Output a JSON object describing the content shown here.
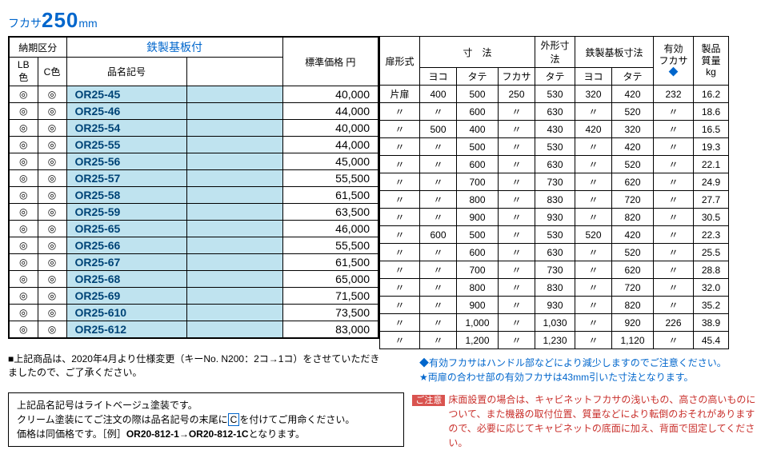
{
  "title_prefix": "フカサ",
  "title_value": "250",
  "title_unit": "mm",
  "left_headers": {
    "noukiku": "納期区分",
    "tetsu": "鉄製基板付",
    "lb": "LB色",
    "c": "C色",
    "hinmei": "品名記号",
    "price": "標準価格 円"
  },
  "right_headers": {
    "tobira": "扉形式",
    "sunpou": "寸　法",
    "gaikei": "外形寸法",
    "tetsuban": "鉄製基板寸法",
    "yuko": "有効\nフカサ",
    "shitsu": "製品\n質量",
    "yoko": "ヨコ",
    "tate": "タテ",
    "fukasa": "フカサ",
    "kg": "kg",
    "diamond": "◆"
  },
  "circle": "◎",
  "ditto": "〃",
  "rows": [
    {
      "pn": "OR25-45",
      "price": "40,000",
      "tobira": "片扉",
      "yoko": "400",
      "tate": "500",
      "fukasa": "250",
      "gtate": "530",
      "tyoko": "320",
      "ttate": "420",
      "yuko": "232",
      "kg": "16.2"
    },
    {
      "pn": "OR25-46",
      "price": "44,000",
      "tobira": "〃",
      "yoko": "〃",
      "tate": "600",
      "fukasa": "〃",
      "gtate": "630",
      "tyoko": "〃",
      "ttate": "520",
      "yuko": "〃",
      "kg": "18.6"
    },
    {
      "pn": "OR25-54",
      "price": "40,000",
      "tobira": "〃",
      "yoko": "500",
      "tate": "400",
      "fukasa": "〃",
      "gtate": "430",
      "tyoko": "420",
      "ttate": "320",
      "yuko": "〃",
      "kg": "16.5"
    },
    {
      "pn": "OR25-55",
      "price": "44,000",
      "tobira": "〃",
      "yoko": "〃",
      "tate": "500",
      "fukasa": "〃",
      "gtate": "530",
      "tyoko": "〃",
      "ttate": "420",
      "yuko": "〃",
      "kg": "19.3"
    },
    {
      "pn": "OR25-56",
      "price": "45,000",
      "tobira": "〃",
      "yoko": "〃",
      "tate": "600",
      "fukasa": "〃",
      "gtate": "630",
      "tyoko": "〃",
      "ttate": "520",
      "yuko": "〃",
      "kg": "22.1"
    },
    {
      "pn": "OR25-57",
      "price": "55,500",
      "tobira": "〃",
      "yoko": "〃",
      "tate": "700",
      "fukasa": "〃",
      "gtate": "730",
      "tyoko": "〃",
      "ttate": "620",
      "yuko": "〃",
      "kg": "24.9"
    },
    {
      "pn": "OR25-58",
      "price": "61,500",
      "tobira": "〃",
      "yoko": "〃",
      "tate": "800",
      "fukasa": "〃",
      "gtate": "830",
      "tyoko": "〃",
      "ttate": "720",
      "yuko": "〃",
      "kg": "27.7"
    },
    {
      "pn": "OR25-59",
      "price": "63,500",
      "tobira": "〃",
      "yoko": "〃",
      "tate": "900",
      "fukasa": "〃",
      "gtate": "930",
      "tyoko": "〃",
      "ttate": "820",
      "yuko": "〃",
      "kg": "30.5"
    },
    {
      "pn": "OR25-65",
      "price": "46,000",
      "tobira": "〃",
      "yoko": "600",
      "tate": "500",
      "fukasa": "〃",
      "gtate": "530",
      "tyoko": "520",
      "ttate": "420",
      "yuko": "〃",
      "kg": "22.3"
    },
    {
      "pn": "OR25-66",
      "price": "55,500",
      "tobira": "〃",
      "yoko": "〃",
      "tate": "600",
      "fukasa": "〃",
      "gtate": "630",
      "tyoko": "〃",
      "ttate": "520",
      "yuko": "〃",
      "kg": "25.5"
    },
    {
      "pn": "OR25-67",
      "price": "61,500",
      "tobira": "〃",
      "yoko": "〃",
      "tate": "700",
      "fukasa": "〃",
      "gtate": "730",
      "tyoko": "〃",
      "ttate": "620",
      "yuko": "〃",
      "kg": "28.8"
    },
    {
      "pn": "OR25-68",
      "price": "65,000",
      "tobira": "〃",
      "yoko": "〃",
      "tate": "800",
      "fukasa": "〃",
      "gtate": "830",
      "tyoko": "〃",
      "ttate": "720",
      "yuko": "〃",
      "kg": "32.0"
    },
    {
      "pn": "OR25-69",
      "price": "71,500",
      "tobira": "〃",
      "yoko": "〃",
      "tate": "900",
      "fukasa": "〃",
      "gtate": "930",
      "tyoko": "〃",
      "ttate": "820",
      "yuko": "〃",
      "kg": "35.2"
    },
    {
      "pn": "OR25-610",
      "price": "73,500",
      "tobira": "〃",
      "yoko": "〃",
      "tate": "1,000",
      "fukasa": "〃",
      "gtate": "1,030",
      "tyoko": "〃",
      "ttate": "920",
      "yuko": "226",
      "kg": "38.9"
    },
    {
      "pn": "OR25-612",
      "price": "83,000",
      "tobira": "〃",
      "yoko": "〃",
      "tate": "1,200",
      "fukasa": "〃",
      "gtate": "1,230",
      "tyoko": "〃",
      "ttate": "1,120",
      "yuko": "〃",
      "kg": "45.4"
    }
  ],
  "note1_a": "■上記商品は、2020年4月より仕様変更（キーNo. N200：2コ→1コ）をさせていただき",
  "note1_b": "ましたので、ご了承ください。",
  "note2_a": "◆有効フカサはハンドル部などにより減少しますのでご注意ください。",
  "note2_b": "★両扉の合わせ部の有効フカサは43mm引いた寸法となります。",
  "box_note_1": "上記品名記号はライトベージュ塗装です。",
  "box_note_2a": "クリーム塗装",
  "box_note_2b": "にてご注文の際は品名記号の末尾に",
  "box_note_2c": "C",
  "box_note_2d": "を付けてご用命ください。",
  "box_note_3a": "価格は同価格です。［例］",
  "box_note_3b": "OR20-812-1→OR20-812-1C",
  "box_note_3c": "となります。",
  "caution_label": "ご注意",
  "caution_1": "床面設置の場合は、キャビネットフカサの浅いもの、高さの高いものに",
  "caution_2": "ついて、また機器の取付位置、質量などにより転倒のおそれがあります",
  "caution_3": "ので、必要に応じてキャビネットの底面に加え、背面で固定してください。",
  "col_widths_left": {
    "lb": 36,
    "c": 36,
    "pn": 150,
    "blank": 120,
    "price": 120
  },
  "col_widths_right": {
    "tobira": 50,
    "yoko": 46,
    "tate": 52,
    "fukasa": 46,
    "gtate": 50,
    "tyoko": 46,
    "ttate": 52,
    "yuko": 50,
    "kg": 44
  }
}
